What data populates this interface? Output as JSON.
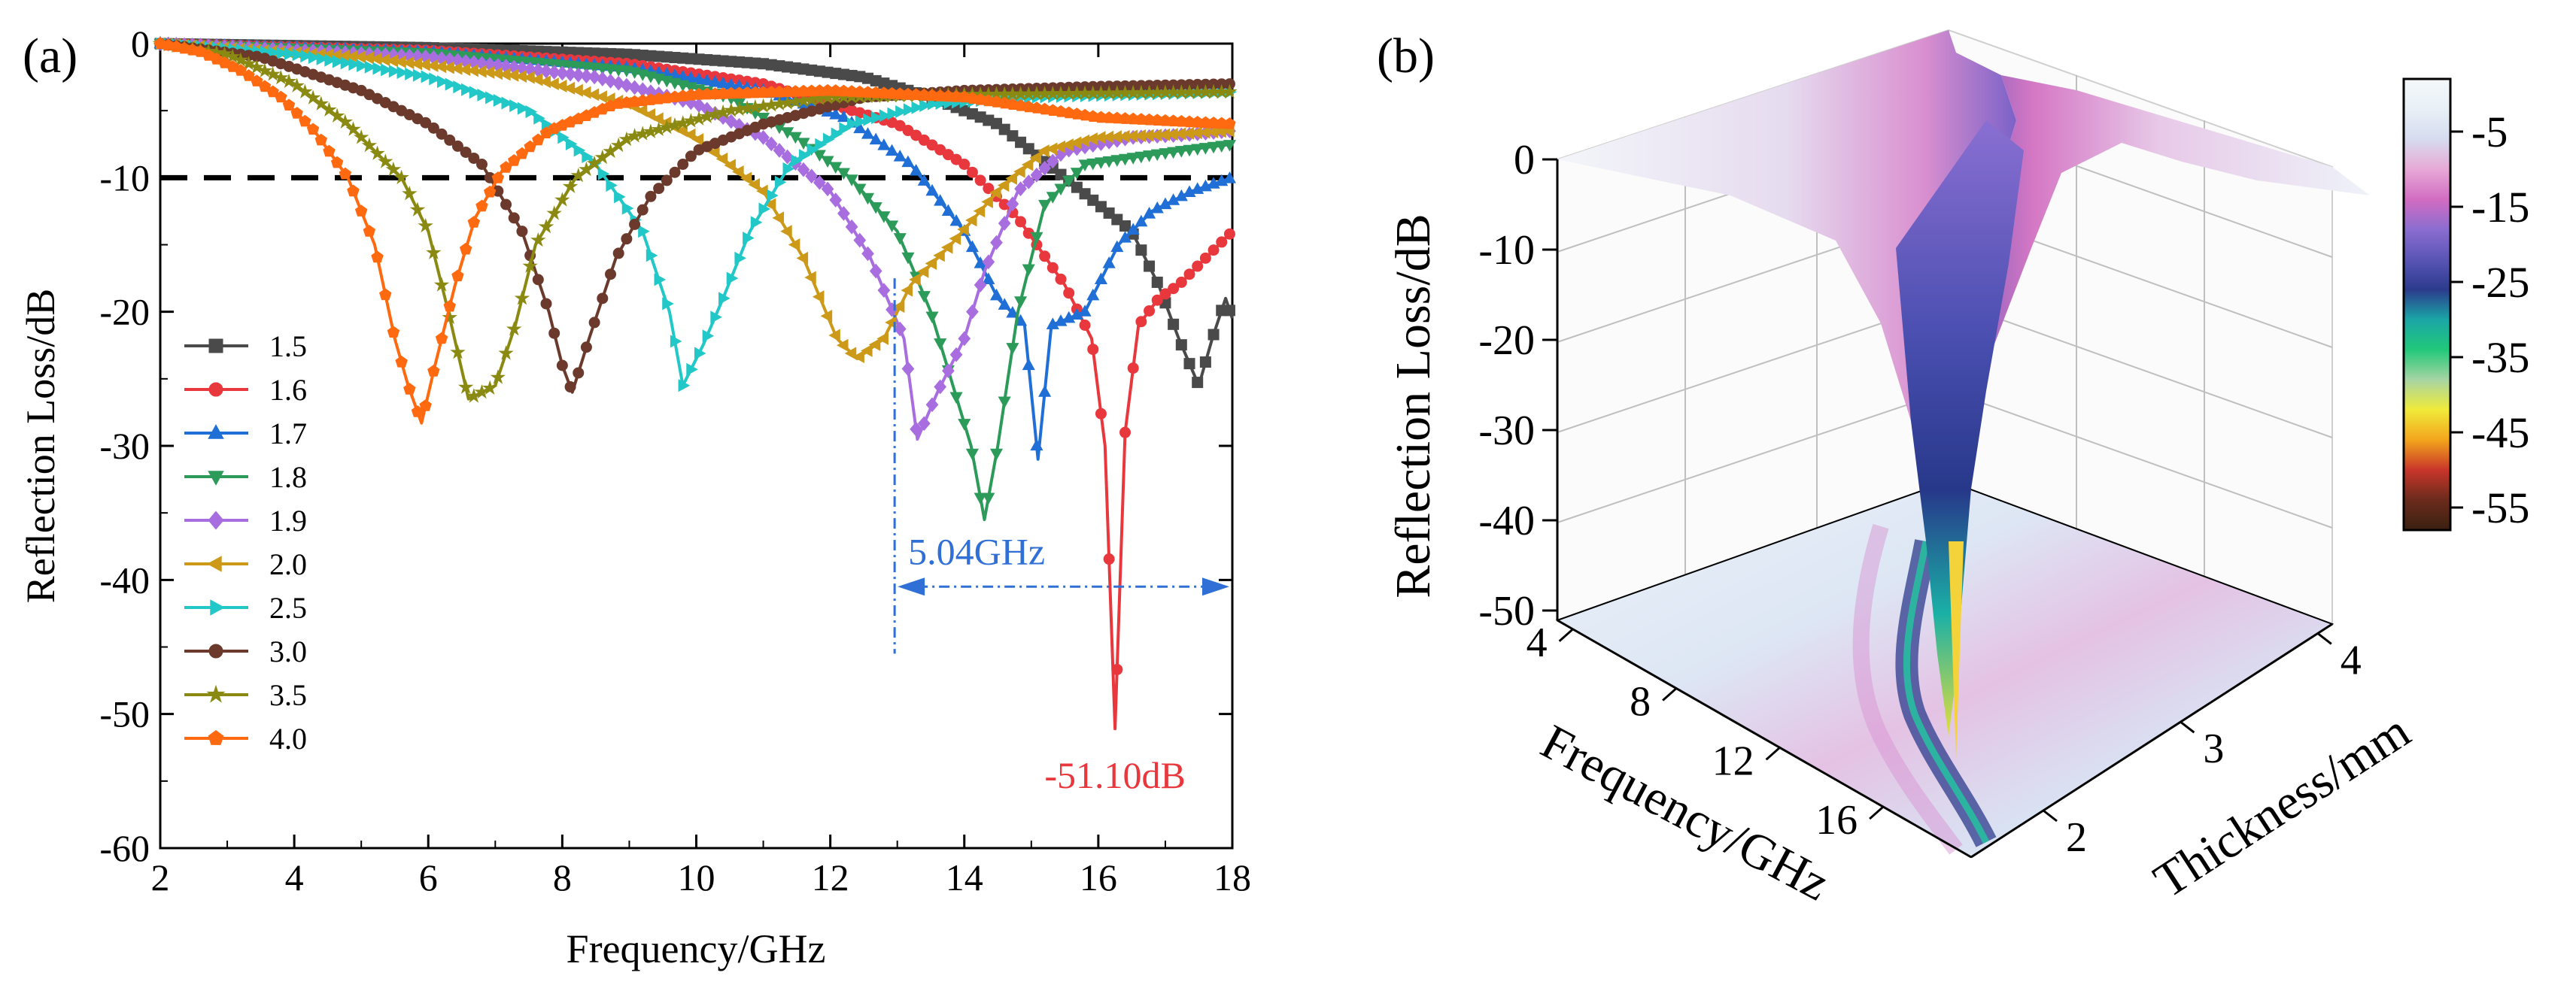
{
  "colors": {
    "1.5": "#4a4a4a",
    "1.6": "#e8383d",
    "1.7": "#1f6fd6",
    "1.8": "#2c9b5a",
    "1.9": "#a86ee0",
    "2.0": "#cc9a18",
    "2.5": "#22c8c8",
    "3.0": "#6b3a2c",
    "3.5": "#8a8a12",
    "4.0": "#ff6a10",
    "bandwidth": "#2f6fd6",
    "min_label": "#e8383d"
  },
  "chart_data": [
    {
      "panel_label": "(a)",
      "type": "line",
      "xlabel": "Frequency/GHz",
      "ylabel": "Reflection Loss/dB",
      "xlim": [
        2,
        18
      ],
      "ylim": [
        -60,
        0
      ],
      "x_ticks": [
        "2",
        "4",
        "6",
        "8",
        "10",
        "12",
        "14",
        "16",
        "18"
      ],
      "y_ticks": [
        "0",
        "-10",
        "-20",
        "-30",
        "-40",
        "-50",
        "-60"
      ],
      "reference_line": -10,
      "legend_position": "left-bottom",
      "series": [
        {
          "name": "1.5",
          "marker": "square",
          "points": [
            [
              2,
              0
            ],
            [
              6,
              -0.3
            ],
            [
              9,
              -0.8
            ],
            [
              11,
              -1.5
            ],
            [
              12.5,
              -2.5
            ],
            [
              13.5,
              -4
            ],
            [
              14.5,
              -6
            ],
            [
              15,
              -8
            ],
            [
              15.5,
              -10
            ],
            [
              16,
              -12
            ],
            [
              16.5,
              -14
            ],
            [
              16.9,
              -18
            ],
            [
              17.2,
              -22
            ],
            [
              17.5,
              -25.5
            ],
            [
              17.7,
              -22
            ],
            [
              17.9,
              -19
            ],
            [
              18,
              -20.5
            ]
          ]
        },
        {
          "name": "1.6",
          "marker": "circle",
          "points": [
            [
              2,
              0
            ],
            [
              6,
              -0.5
            ],
            [
              9,
              -1.5
            ],
            [
              11,
              -3
            ],
            [
              12,
              -4.5
            ],
            [
              13,
              -6
            ],
            [
              14,
              -9
            ],
            [
              14.8,
              -13
            ],
            [
              15.5,
              -18
            ],
            [
              15.9,
              -22
            ],
            [
              16.1,
              -30
            ],
            [
              16.25,
              -51.1
            ],
            [
              16.4,
              -29
            ],
            [
              16.6,
              -21
            ],
            [
              16.9,
              -19
            ],
            [
              17.2,
              -18
            ],
            [
              17.6,
              -16
            ],
            [
              18,
              -14
            ]
          ]
        },
        {
          "name": "1.7",
          "marker": "triangle-up",
          "points": [
            [
              2,
              0
            ],
            [
              6,
              -0.6
            ],
            [
              9,
              -1.8
            ],
            [
              11,
              -3.5
            ],
            [
              12.2,
              -5.5
            ],
            [
              13.2,
              -9
            ],
            [
              14,
              -14
            ],
            [
              14.5,
              -19
            ],
            [
              14.9,
              -21
            ],
            [
              15.1,
              -31
            ],
            [
              15.3,
              -21
            ],
            [
              15.8,
              -20
            ],
            [
              16.3,
              -15
            ],
            [
              16.8,
              -12.5
            ],
            [
              17.4,
              -11
            ],
            [
              18,
              -10
            ]
          ]
        },
        {
          "name": "1.8",
          "marker": "triangle-down",
          "points": [
            [
              2,
              0
            ],
            [
              6,
              -0.7
            ],
            [
              9,
              -2
            ],
            [
              10.5,
              -4
            ],
            [
              11.5,
              -7
            ],
            [
              12.3,
              -10
            ],
            [
              13,
              -14
            ],
            [
              13.5,
              -20
            ],
            [
              13.8,
              -25
            ],
            [
              14.1,
              -30
            ],
            [
              14.3,
              -35.5
            ],
            [
              14.5,
              -30
            ],
            [
              14.8,
              -20
            ],
            [
              15.2,
              -12
            ],
            [
              15.8,
              -9
            ],
            [
              16.5,
              -8.5
            ],
            [
              17.2,
              -8
            ],
            [
              18,
              -7.5
            ]
          ]
        },
        {
          "name": "1.9",
          "marker": "diamond",
          "points": [
            [
              2,
              0
            ],
            [
              6,
              -1
            ],
            [
              8.5,
              -2.5
            ],
            [
              10,
              -4.5
            ],
            [
              11,
              -7
            ],
            [
              12,
              -11
            ],
            [
              12.6,
              -16
            ],
            [
              13.1,
              -22
            ],
            [
              13.3,
              -29.5
            ],
            [
              13.6,
              -26
            ],
            [
              14,
              -22
            ],
            [
              14.3,
              -17
            ],
            [
              14.8,
              -11
            ],
            [
              15.5,
              -8
            ],
            [
              16.5,
              -7
            ],
            [
              17.3,
              -6.8
            ],
            [
              18,
              -6.5
            ]
          ]
        },
        {
          "name": "2.0",
          "marker": "triangle-left",
          "points": [
            [
              2,
              0
            ],
            [
              5,
              -1
            ],
            [
              7.5,
              -2.5
            ],
            [
              9,
              -4.5
            ],
            [
              10,
              -7
            ],
            [
              11,
              -11
            ],
            [
              11.6,
              -16
            ],
            [
              12.1,
              -22
            ],
            [
              12.4,
              -23.5
            ],
            [
              12.8,
              -22
            ],
            [
              13.2,
              -18
            ],
            [
              13.8,
              -15
            ],
            [
              14.5,
              -11
            ],
            [
              15.2,
              -8
            ],
            [
              16,
              -7
            ],
            [
              17,
              -6.8
            ],
            [
              18,
              -6.5
            ]
          ]
        },
        {
          "name": "2.5",
          "marker": "triangle-right",
          "points": [
            [
              2,
              0
            ],
            [
              4,
              -0.8
            ],
            [
              6,
              -2.5
            ],
            [
              7.5,
              -5
            ],
            [
              8.5,
              -9
            ],
            [
              9.2,
              -14
            ],
            [
              9.6,
              -20
            ],
            [
              9.8,
              -25.5
            ],
            [
              10.1,
              -22.5
            ],
            [
              10.4,
              -19
            ],
            [
              10.8,
              -14
            ],
            [
              11.4,
              -9
            ],
            [
              12.3,
              -6
            ],
            [
              13.5,
              -4.5
            ],
            [
              15,
              -4
            ],
            [
              16.5,
              -3.8
            ],
            [
              18,
              -3.6
            ]
          ]
        },
        {
          "name": "3.0",
          "marker": "circle",
          "points": [
            [
              2,
              0
            ],
            [
              3.5,
              -1
            ],
            [
              5,
              -3.5
            ],
            [
              6,
              -6
            ],
            [
              6.8,
              -9
            ],
            [
              7.4,
              -14
            ],
            [
              7.8,
              -20
            ],
            [
              8,
              -24
            ],
            [
              8.15,
              -26
            ],
            [
              8.4,
              -22
            ],
            [
              8.8,
              -16
            ],
            [
              9.3,
              -11.5
            ],
            [
              10,
              -8
            ],
            [
              11,
              -6
            ],
            [
              12.5,
              -4
            ],
            [
              14,
              -3.5
            ],
            [
              16,
              -3.2
            ],
            [
              18,
              -3
            ]
          ]
        },
        {
          "name": "3.5",
          "marker": "star",
          "points": [
            [
              2,
              0
            ],
            [
              3,
              -0.8
            ],
            [
              4,
              -3
            ],
            [
              4.8,
              -6
            ],
            [
              5.6,
              -10
            ],
            [
              6,
              -14
            ],
            [
              6.3,
              -20
            ],
            [
              6.6,
              -26.5
            ],
            [
              7,
              -25.5
            ],
            [
              7.3,
              -21
            ],
            [
              7.6,
              -15
            ],
            [
              8.2,
              -10
            ],
            [
              9,
              -7
            ],
            [
              10.5,
              -5
            ],
            [
              12,
              -4
            ],
            [
              14,
              -3.8
            ],
            [
              16,
              -3.7
            ],
            [
              18,
              -3.6
            ]
          ]
        },
        {
          "name": "4.0",
          "marker": "pentagon",
          "points": [
            [
              2,
              0
            ],
            [
              2.6,
              -0.6
            ],
            [
              3.2,
              -2
            ],
            [
              3.8,
              -4
            ],
            [
              4.3,
              -6.5
            ],
            [
              4.8,
              -10
            ],
            [
              5.2,
              -15
            ],
            [
              5.5,
              -22
            ],
            [
              5.7,
              -25.5
            ],
            [
              5.9,
              -28.3
            ],
            [
              6.1,
              -24
            ],
            [
              6.4,
              -18
            ],
            [
              6.7,
              -13
            ],
            [
              7.1,
              -9.5
            ],
            [
              7.8,
              -6.5
            ],
            [
              8.8,
              -4.5
            ],
            [
              10,
              -3.8
            ],
            [
              12,
              -3.5
            ],
            [
              14,
              -4
            ],
            [
              16,
              -5.5
            ],
            [
              18,
              -6
            ]
          ]
        }
      ],
      "annotations": [
        {
          "text": "5.04GHz",
          "x_start": 12.96,
          "x_end": 18
        },
        {
          "text": "-51.10dB",
          "x": 16.25,
          "y": -51.1
        }
      ]
    },
    {
      "panel_label": "(b)",
      "type": "surface3d",
      "xlabel": "Frequency/GHz",
      "ylabel": "Thickness/mm",
      "zlabel": "Reflection Loss/dB",
      "x_ticks": [
        "4",
        "8",
        "12",
        "16"
      ],
      "y_ticks": [
        "2",
        "3",
        "4"
      ],
      "z_ticks": [
        "0",
        "-10",
        "-20",
        "-30",
        "-40",
        "-50"
      ],
      "colorbar": {
        "ticks": [
          "-5",
          "-15",
          "-25",
          "-35",
          "-45",
          "-55"
        ],
        "stops": [
          "#f4f8fb",
          "#e8f0f6",
          "#d6dcef",
          "#e7a9d6",
          "#d26cc2",
          "#8b6dd0",
          "#5a55b6",
          "#2c3b8c",
          "#1aa6a6",
          "#22c87a",
          "#a7d5a2",
          "#f0ea3a",
          "#f3a51c",
          "#c8352a",
          "#6b2b1c",
          "#3a2010"
        ]
      }
    }
  ]
}
